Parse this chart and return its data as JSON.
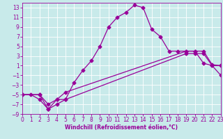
{
  "xlabel": "Windchill (Refroidissement éolien,°C)",
  "background_color": "#c8eaea",
  "grid_color": "#ffffff",
  "line_color": "#990099",
  "xlim": [
    0,
    23
  ],
  "ylim": [
    -9,
    14
  ],
  "xticks": [
    0,
    1,
    2,
    3,
    4,
    5,
    6,
    7,
    8,
    9,
    10,
    11,
    12,
    13,
    14,
    15,
    16,
    17,
    18,
    19,
    20,
    21,
    22,
    23
  ],
  "yticks": [
    -9,
    -7,
    -5,
    -3,
    -1,
    1,
    3,
    5,
    7,
    9,
    11,
    13
  ],
  "curve1_x": [
    0,
    1,
    2,
    3,
    4,
    5,
    6,
    7,
    8,
    9,
    10,
    11,
    12,
    13,
    14,
    15,
    16,
    17,
    18,
    19,
    20,
    21,
    22,
    23
  ],
  "curve1_y": [
    -5,
    -5,
    -6,
    -8,
    -6,
    -6,
    -2.5,
    0,
    2,
    5,
    9,
    11,
    12,
    13.5,
    13,
    8.5,
    7,
    4,
    4,
    4,
    4,
    1.5,
    1,
    1
  ],
  "curve2_x": [
    0,
    2,
    3,
    4,
    5,
    19,
    20,
    21,
    22,
    23
  ],
  "curve2_y": [
    -5,
    -5,
    -7,
    -6,
    -4.5,
    4,
    4,
    4,
    1.2,
    1
  ],
  "curve3_x": [
    0,
    2,
    3,
    4,
    5,
    19,
    20,
    21,
    22,
    23
  ],
  "curve3_y": [
    -5,
    -5,
    -8,
    -7,
    -6,
    3.5,
    3.5,
    3.5,
    1.0,
    -1.0
  ],
  "markersize": 2.5,
  "linewidth": 0.9,
  "xlabel_fontsize": 5.5,
  "tick_fontsize": 5.5
}
